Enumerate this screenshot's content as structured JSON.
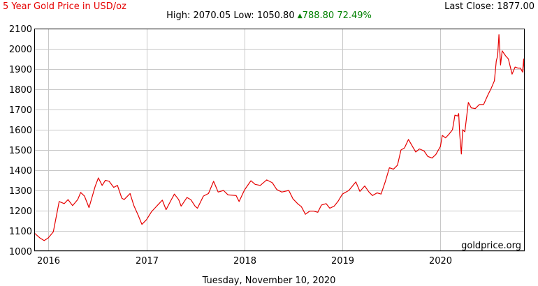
{
  "header": {
    "title": "5 Year Gold Price in USD/oz",
    "last_close_label": "Last Close:",
    "last_close_value": "1877.00",
    "high_label": "High:",
    "high_value": "2070.05",
    "low_label": "Low:",
    "low_value": "1050.80",
    "change_value": "788.80",
    "change_percent": "72.49%"
  },
  "watermark": "goldprice.org",
  "footer_date": "Tuesday, November 10, 2020",
  "colors": {
    "line": "#e60000",
    "title": "#e60000",
    "positive": "#008000",
    "grid": "#c8c8c8",
    "frame": "#000000"
  },
  "chart_data": {
    "type": "line",
    "title": "5 Year Gold Price in USD/oz",
    "xlabel": "",
    "ylabel": "",
    "x_tick_labels": [
      "2016",
      "2017",
      "2018",
      "2019",
      "2020"
    ],
    "y_tick_labels": [
      "1000",
      "1100",
      "1200",
      "1300",
      "1400",
      "1500",
      "1600",
      "1700",
      "1800",
      "1900",
      "2000",
      "2100"
    ],
    "ylim": [
      1000,
      2100
    ],
    "xlim": [
      "2015-11-10",
      "2020-11-10"
    ],
    "grid": true,
    "series": [
      {
        "x": [
          "2015-11-10",
          "2015-12-01",
          "2015-12-17",
          "2016-01-01",
          "2016-01-20",
          "2016-02-11",
          "2016-03-01",
          "2016-03-15",
          "2016-04-01",
          "2016-04-20",
          "2016-05-01",
          "2016-05-15",
          "2016-06-01",
          "2016-06-24",
          "2016-07-06",
          "2016-07-20",
          "2016-08-01",
          "2016-08-15",
          "2016-09-01",
          "2016-09-15",
          "2016-10-01",
          "2016-10-10",
          "2016-11-01",
          "2016-11-15",
          "2016-12-01",
          "2016-12-15",
          "2017-01-01",
          "2017-01-20",
          "2017-02-01",
          "2017-02-15",
          "2017-03-01",
          "2017-03-15",
          "2017-04-01",
          "2017-04-15",
          "2017-05-01",
          "2017-05-10",
          "2017-06-01",
          "2017-06-15",
          "2017-07-01",
          "2017-07-10",
          "2017-08-01",
          "2017-08-20",
          "2017-09-08",
          "2017-09-25",
          "2017-10-15",
          "2017-11-01",
          "2017-12-01",
          "2017-12-12",
          "2018-01-01",
          "2018-01-25",
          "2018-02-10",
          "2018-03-01",
          "2018-03-25",
          "2018-04-15",
          "2018-05-01",
          "2018-05-20",
          "2018-06-15",
          "2018-07-01",
          "2018-07-20",
          "2018-08-01",
          "2018-08-16",
          "2018-09-01",
          "2018-09-15",
          "2018-10-01",
          "2018-10-15",
          "2018-11-01",
          "2018-11-15",
          "2018-12-01",
          "2018-12-15",
          "2019-01-01",
          "2019-01-25",
          "2019-02-20",
          "2019-03-07",
          "2019-03-25",
          "2019-04-10",
          "2019-04-23",
          "2019-05-10",
          "2019-05-25",
          "2019-06-10",
          "2019-06-25",
          "2019-07-10",
          "2019-07-25",
          "2019-08-07",
          "2019-08-20",
          "2019-09-04",
          "2019-09-20",
          "2019-10-01",
          "2019-10-15",
          "2019-11-01",
          "2019-11-15",
          "2019-12-01",
          "2019-12-15",
          "2020-01-01",
          "2020-01-08",
          "2020-01-20",
          "2020-02-01",
          "2020-02-15",
          "2020-02-24",
          "2020-03-05",
          "2020-03-09",
          "2020-03-13",
          "2020-03-19",
          "2020-03-24",
          "2020-04-01",
          "2020-04-14",
          "2020-04-25",
          "2020-05-10",
          "2020-05-25",
          "2020-06-10",
          "2020-06-25",
          "2020-07-08",
          "2020-07-20",
          "2020-07-27",
          "2020-08-01",
          "2020-08-06",
          "2020-08-12",
          "2020-08-18",
          "2020-08-31",
          "2020-09-10",
          "2020-09-24",
          "2020-10-05",
          "2020-10-15",
          "2020-10-25",
          "2020-11-02",
          "2020-11-06",
          "2020-11-09",
          "2020-11-10"
        ],
        "values": [
          1090,
          1065,
          1052,
          1065,
          1095,
          1245,
          1235,
          1255,
          1225,
          1255,
          1290,
          1272,
          1215,
          1320,
          1362,
          1325,
          1350,
          1345,
          1315,
          1325,
          1262,
          1255,
          1285,
          1225,
          1178,
          1132,
          1155,
          1195,
          1212,
          1232,
          1252,
          1205,
          1248,
          1282,
          1255,
          1222,
          1265,
          1255,
          1222,
          1212,
          1272,
          1285,
          1345,
          1292,
          1300,
          1278,
          1275,
          1245,
          1302,
          1348,
          1330,
          1325,
          1352,
          1338,
          1305,
          1292,
          1300,
          1258,
          1232,
          1220,
          1182,
          1198,
          1198,
          1192,
          1228,
          1235,
          1212,
          1222,
          1245,
          1282,
          1300,
          1342,
          1295,
          1322,
          1292,
          1275,
          1288,
          1282,
          1345,
          1412,
          1405,
          1425,
          1500,
          1510,
          1552,
          1515,
          1490,
          1505,
          1495,
          1468,
          1460,
          1478,
          1517,
          1572,
          1560,
          1577,
          1600,
          1672,
          1668,
          1680,
          1575,
          1480,
          1600,
          1590,
          1735,
          1708,
          1705,
          1725,
          1725,
          1770,
          1805,
          1842,
          1940,
          1965,
          2070,
          1920,
          1990,
          1965,
          1950,
          1875,
          1910,
          1905,
          1905,
          1885,
          1950,
          1875,
          1877
        ]
      }
    ]
  }
}
